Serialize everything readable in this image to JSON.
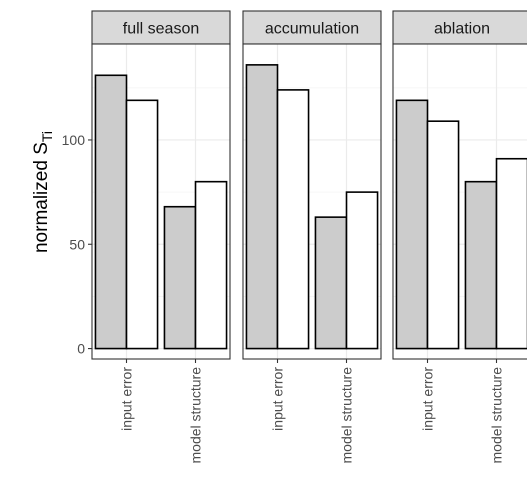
{
  "chart_data": {
    "type": "bar",
    "facets": [
      "full season",
      "accumulation",
      "ablation"
    ],
    "categories": [
      "input error",
      "model structure"
    ],
    "series": [
      {
        "values": [
          [
            131,
            68
          ],
          [
            136,
            63
          ],
          [
            119,
            80
          ]
        ]
      },
      {
        "values": [
          [
            119,
            80
          ],
          [
            124,
            75
          ],
          [
            109,
            91
          ]
        ]
      }
    ],
    "ylabel_main": "normalized S",
    "ylabel_sub": "Ti",
    "yticks": [
      0,
      50,
      100
    ],
    "ylim": [
      -5,
      146
    ],
    "grid": true,
    "colors": {
      "series_fill": [
        "#cccccc",
        "#ffffff"
      ],
      "bar_stroke": "#000000",
      "strip_fill": "#d9d9d9",
      "panel_border": "#333333",
      "grid_major": "#ebebeb",
      "grid_minor": "#f5f5f5"
    }
  }
}
